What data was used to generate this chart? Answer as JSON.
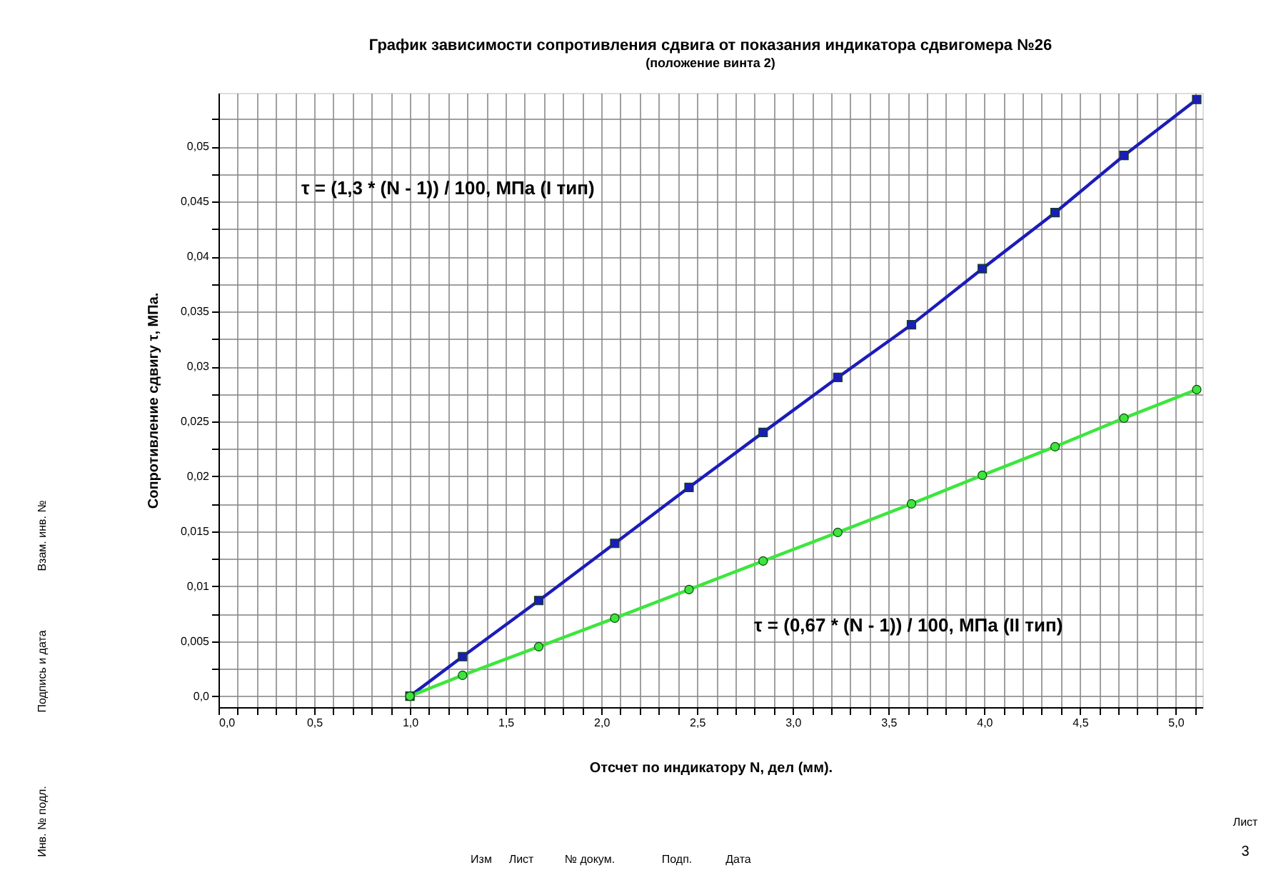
{
  "chart_data": {
    "type": "line",
    "title": "График зависимости сопротивления сдвига от показания индикатора сдвигомера №26",
    "subtitle": "(положение винта 2)",
    "xlabel": "Отсчет по индикатору N, дел (мм).",
    "ylabel": "Сопротивление сдвигу τ, МПа.",
    "x": [
      1.0,
      1.275,
      1.673,
      2.07,
      2.458,
      2.845,
      3.235,
      3.62,
      3.99,
      4.37,
      4.73,
      5.11
    ],
    "series": [
      {
        "color": "#1c1cb8",
        "marker": "square",
        "values": [
          0,
          0.0036,
          0.0087,
          0.0139,
          0.019,
          0.024,
          0.029,
          0.0338,
          0.0389,
          0.044,
          0.0492,
          0.0543
        ]
      },
      {
        "color": "#3ce63c",
        "marker": "circle",
        "values": [
          0,
          0.0019,
          0.0045,
          0.0071,
          0.0097,
          0.0123,
          0.0149,
          0.0175,
          0.0201,
          0.0227,
          0.0253,
          0.0279
        ]
      }
    ],
    "xlim": [
      0,
      5.14
    ],
    "ylim": [
      -0.001,
      0.0549
    ],
    "xticks": [
      {
        "value": 0,
        "label": "0,0"
      },
      {
        "value": 0.1,
        "label": null
      },
      {
        "value": 0.2,
        "label": null
      },
      {
        "value": 0.3,
        "label": null
      },
      {
        "value": 0.4,
        "label": null
      },
      {
        "value": 0.5,
        "label": "0,5"
      },
      {
        "value": 0.6,
        "label": null
      },
      {
        "value": 0.7,
        "label": null
      },
      {
        "value": 0.8,
        "label": null
      },
      {
        "value": 0.9,
        "label": null
      },
      {
        "value": 1.0,
        "label": "1,0"
      },
      {
        "value": 1.1,
        "label": null
      },
      {
        "value": 1.2,
        "label": null
      },
      {
        "value": 1.3,
        "label": null
      },
      {
        "value": 1.4,
        "label": null
      },
      {
        "value": 1.5,
        "label": "1,5"
      },
      {
        "value": 1.6,
        "label": null
      },
      {
        "value": 1.7,
        "label": null
      },
      {
        "value": 1.8,
        "label": null
      },
      {
        "value": 1.9,
        "label": null
      },
      {
        "value": 2.0,
        "label": "2,0"
      },
      {
        "value": 2.1,
        "label": null
      },
      {
        "value": 2.2,
        "label": null
      },
      {
        "value": 2.3,
        "label": null
      },
      {
        "value": 2.4,
        "label": null
      },
      {
        "value": 2.5,
        "label": "2,5"
      },
      {
        "value": 2.6,
        "label": null
      },
      {
        "value": 2.7,
        "label": null
      },
      {
        "value": 2.8,
        "label": null
      },
      {
        "value": 2.9,
        "label": null
      },
      {
        "value": 3.0,
        "label": "3,0"
      },
      {
        "value": 3.1,
        "label": null
      },
      {
        "value": 3.2,
        "label": null
      },
      {
        "value": 3.3,
        "label": null
      },
      {
        "value": 3.4,
        "label": null
      },
      {
        "value": 3.5,
        "label": "3,5"
      },
      {
        "value": 3.6,
        "label": null
      },
      {
        "value": 3.7,
        "label": null
      },
      {
        "value": 3.8,
        "label": null
      },
      {
        "value": 3.9,
        "label": null
      },
      {
        "value": 4.0,
        "label": "4,0"
      },
      {
        "value": 4.1,
        "label": null
      },
      {
        "value": 4.2,
        "label": null
      },
      {
        "value": 4.3,
        "label": null
      },
      {
        "value": 4.4,
        "label": null
      },
      {
        "value": 4.5,
        "label": "4,5"
      },
      {
        "value": 4.6,
        "label": null
      },
      {
        "value": 4.7,
        "label": null
      },
      {
        "value": 4.8,
        "label": null
      },
      {
        "value": 4.9,
        "label": null
      },
      {
        "value": 5.0,
        "label": "5,0"
      },
      {
        "value": 5.1,
        "label": null
      }
    ],
    "yticks": [
      {
        "value": 0,
        "label": "0,0"
      },
      {
        "value": 0.0025,
        "label": null
      },
      {
        "value": 0.005,
        "label": "0,005"
      },
      {
        "value": 0.0075,
        "label": null
      },
      {
        "value": 0.01,
        "label": "0,01"
      },
      {
        "value": 0.0125,
        "label": null
      },
      {
        "value": 0.015,
        "label": "0,015"
      },
      {
        "value": 0.0175,
        "label": null
      },
      {
        "value": 0.02,
        "label": "0,02"
      },
      {
        "value": 0.0225,
        "label": null
      },
      {
        "value": 0.025,
        "label": "0,025"
      },
      {
        "value": 0.0275,
        "label": null
      },
      {
        "value": 0.03,
        "label": "0,03"
      },
      {
        "value": 0.0325,
        "label": null
      },
      {
        "value": 0.035,
        "label": "0,035"
      },
      {
        "value": 0.0375,
        "label": null
      },
      {
        "value": 0.04,
        "label": "0,04"
      },
      {
        "value": 0.0425,
        "label": null
      },
      {
        "value": 0.045,
        "label": "0,045"
      },
      {
        "value": 0.0475,
        "label": null
      },
      {
        "value": 0.05,
        "label": "0,05"
      },
      {
        "value": 0.0525,
        "label": null
      }
    ],
    "grid": true,
    "legend": false,
    "annotations": [
      "τ  = (1,3 * (N - 1)) / 100, МПа (I тип)",
      "τ  = (0,67 * (N - 1)) / 100, МПа (II тип)",
      "Взам. инв. №",
      "Подпись и дата",
      "Инв. № подл.",
      "Изм",
      "Лист",
      "№ докум.",
      "Подп.",
      "Дата",
      "Лист",
      "3"
    ]
  }
}
